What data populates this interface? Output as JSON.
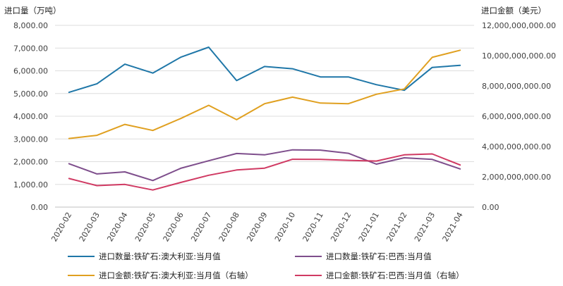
{
  "chart_data": {
    "type": "line",
    "left_axis_title": "进口量（万吨）",
    "right_axis_title": "进口金额（美元）",
    "categories": [
      "2020-02",
      "2020-03",
      "2020-04",
      "2020-05",
      "2020-06",
      "2020-07",
      "2020-08",
      "2020-09",
      "2020-10",
      "2020-11",
      "2020-12",
      "2021-01",
      "2021-02",
      "2021-03",
      "2021-04"
    ],
    "left_ylim": [
      0,
      8000
    ],
    "right_ylim": [
      0,
      12000000000
    ],
    "left_ticks": [
      "0.00",
      "1,000.00",
      "2,000.00",
      "3,000.00",
      "4,000.00",
      "5,000.00",
      "6,000.00",
      "7,000.00",
      "8,000.00"
    ],
    "right_ticks": [
      "0.00",
      "2,000,000,000.00",
      "4,000,000,000.00",
      "6,000,000,000.00",
      "8,000,000,000.00",
      "10,000,000,000.00",
      "12,000,000,000.00"
    ],
    "grid": true,
    "legend_position": "bottom",
    "series": [
      {
        "name": "进口数量:铁矿石:澳大利亚:当月值",
        "axis": "left",
        "color": "#1f77a8",
        "values": [
          5050,
          5430,
          6290,
          5900,
          6600,
          7040,
          5570,
          6190,
          6090,
          5730,
          5730,
          5390,
          5140,
          6150,
          6240
        ]
      },
      {
        "name": "进口数量:铁矿石:巴西:当月值",
        "axis": "left",
        "color": "#7e4e8c",
        "values": [
          1910,
          1460,
          1550,
          1170,
          1710,
          2040,
          2360,
          2300,
          2520,
          2510,
          2370,
          1890,
          2170,
          2100,
          1680
        ]
      },
      {
        "name": "进口金额:铁矿石:澳大利亚:当月值（右轴）",
        "axis": "right",
        "color": "#e0a020",
        "values": [
          4530000000,
          4740000000,
          5460000000,
          5060000000,
          5850000000,
          6720000000,
          5770000000,
          6830000000,
          7260000000,
          6870000000,
          6830000000,
          7450000000,
          7800000000,
          9890000000,
          10360000000
        ]
      },
      {
        "name": "进口金额:铁矿石:巴西:当月值（右轴）",
        "axis": "right",
        "color": "#d03a63",
        "values": [
          1890000000,
          1420000000,
          1500000000,
          1130000000,
          1630000000,
          2100000000,
          2450000000,
          2570000000,
          3160000000,
          3150000000,
          3090000000,
          3040000000,
          3450000000,
          3510000000,
          2780000000
        ]
      }
    ]
  }
}
